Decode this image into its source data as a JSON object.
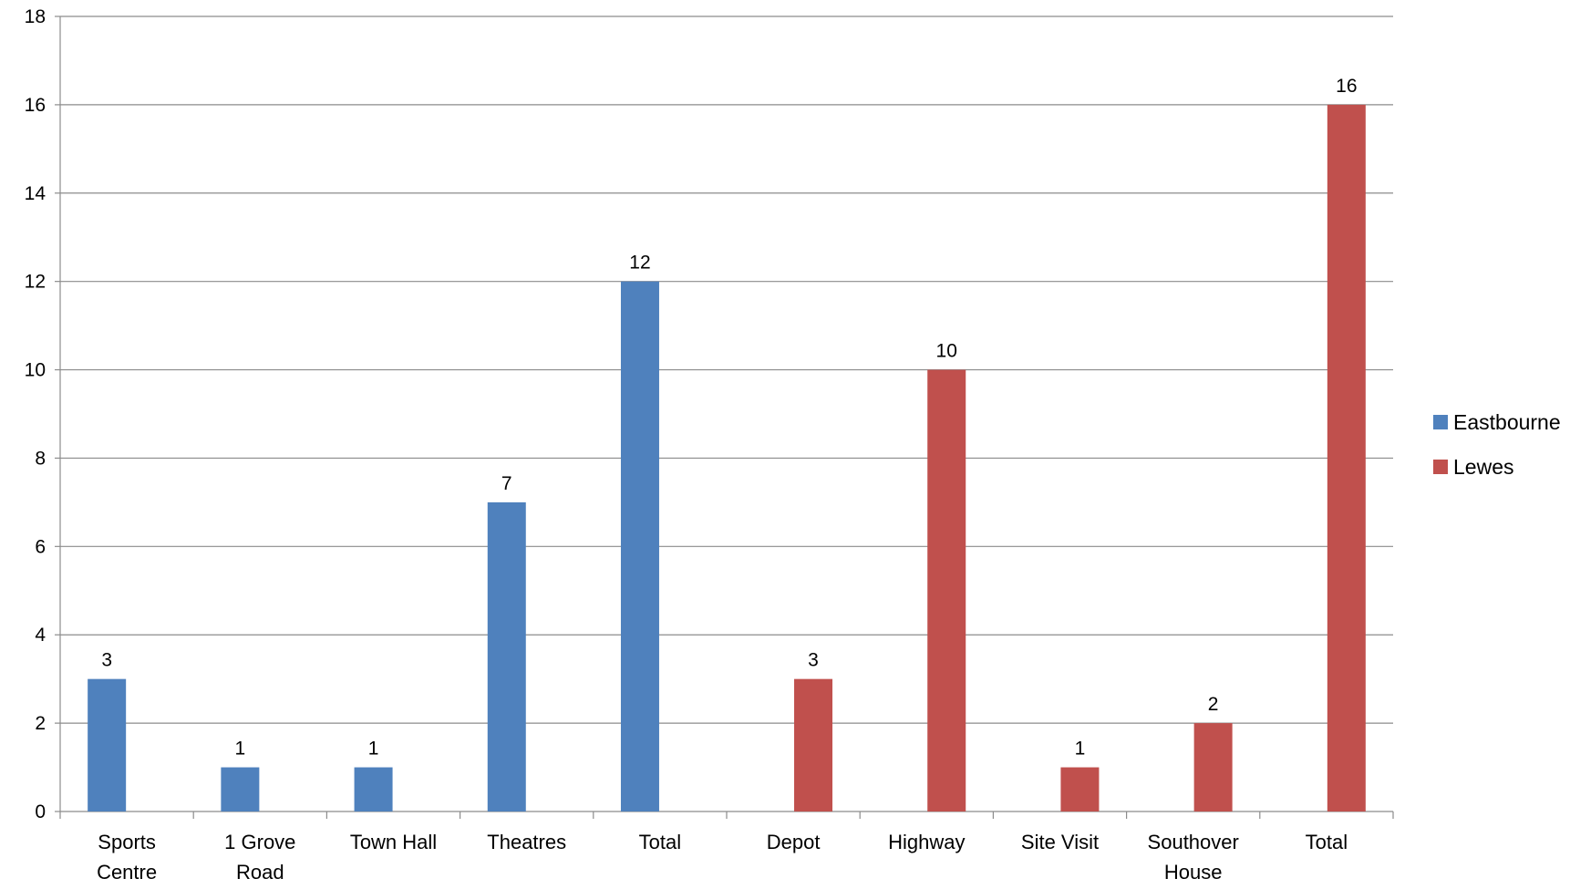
{
  "chart_data": {
    "type": "bar",
    "categories": [
      "Sports Centre",
      "1 Grove Road",
      "Town Hall",
      "Theatres",
      "Total",
      "Depot",
      "Highway",
      "Site Visit",
      "Southover House",
      "Total"
    ],
    "category_lines": [
      [
        "Sports",
        "Centre"
      ],
      [
        "1 Grove",
        "Road"
      ],
      [
        "Town Hall"
      ],
      [
        "Theatres"
      ],
      [
        "Total"
      ],
      [
        "Depot"
      ],
      [
        "Highway"
      ],
      [
        "Site Visit"
      ],
      [
        "Southover",
        "House"
      ],
      [
        "Total"
      ]
    ],
    "series": [
      {
        "name": "Eastbourne",
        "color": "#4F81BD",
        "values": [
          3,
          1,
          1,
          7,
          12,
          null,
          null,
          null,
          null,
          null
        ]
      },
      {
        "name": "Lewes",
        "color": "#C0504D",
        "values": [
          null,
          null,
          null,
          null,
          null,
          3,
          10,
          1,
          2,
          16
        ]
      }
    ],
    "ylim": [
      0,
      18
    ],
    "yticks": [
      0,
      2,
      4,
      6,
      8,
      10,
      12,
      14,
      16,
      18
    ],
    "grid": true,
    "legend_position": "right",
    "data_labels": true,
    "title": "",
    "xlabel": "",
    "ylabel": ""
  }
}
